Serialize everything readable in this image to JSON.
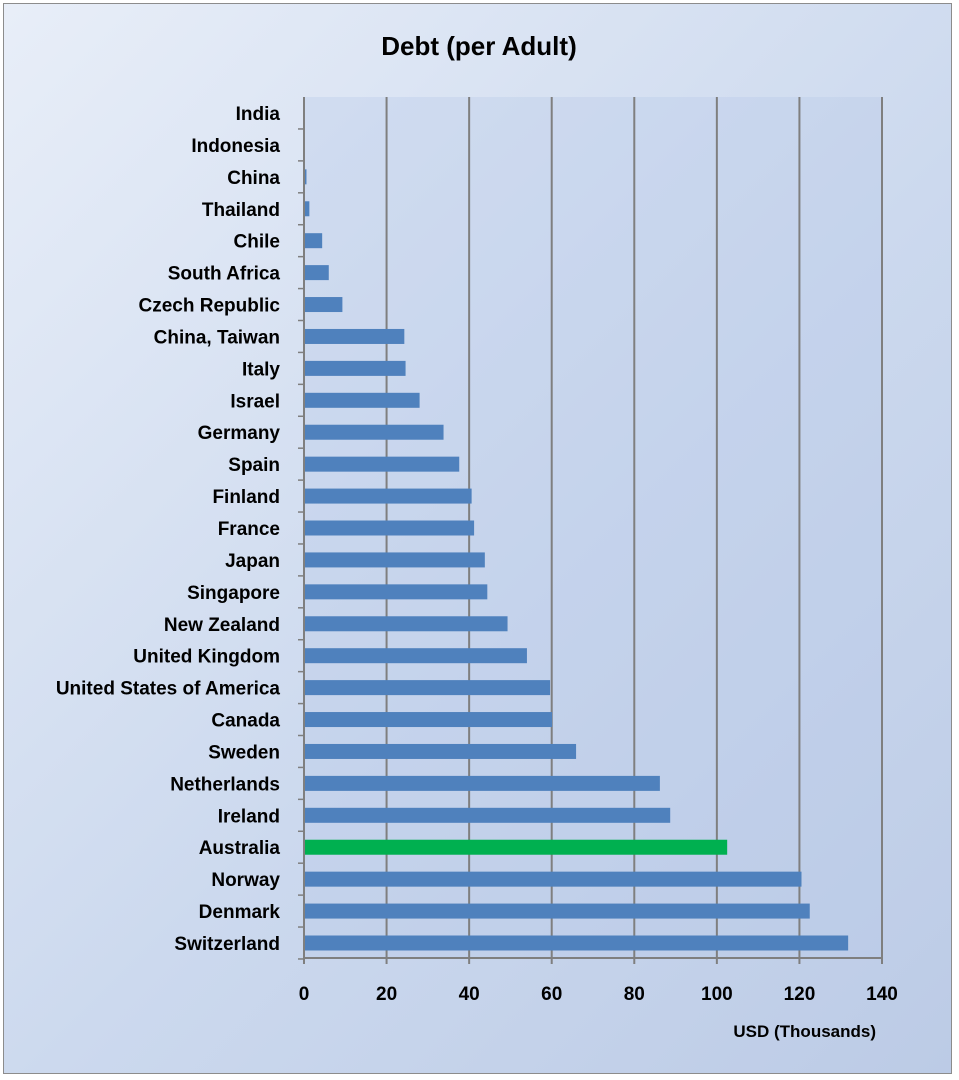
{
  "chart_data": {
    "type": "bar",
    "orientation": "horizontal",
    "title": "Debt (per Adult)",
    "xlabel": "USD (Thousands)",
    "ylabel": "",
    "xlim": [
      0,
      140
    ],
    "x_ticks": [
      0,
      20,
      40,
      60,
      80,
      100,
      120,
      140
    ],
    "grid": "vertical",
    "legend": "none",
    "categories": [
      "India",
      "Indonesia",
      "China",
      "Thailand",
      "Chile",
      "South Africa",
      "Czech Republic",
      "China, Taiwan",
      "Italy",
      "Israel",
      "Germany",
      "Spain",
      "Finland",
      "France",
      "Japan",
      "Singapore",
      "New Zealand",
      "United Kingdom",
      "United States of America",
      "Canada",
      "Sweden",
      "Netherlands",
      "Ireland",
      "Australia",
      "Norway",
      "Denmark",
      "Switzerland"
    ],
    "values": [
      0.1,
      0.2,
      0.6,
      1.3,
      4.4,
      6.0,
      9.3,
      24.3,
      24.6,
      28.0,
      33.8,
      37.6,
      40.6,
      41.2,
      43.8,
      44.4,
      49.3,
      54.0,
      59.6,
      60.1,
      65.9,
      86.2,
      88.7,
      102.5,
      120.5,
      122.5,
      131.8
    ],
    "colors": {
      "default": "#4f81bd",
      "highlight": "#00b050"
    },
    "highlight_category": "Australia"
  }
}
